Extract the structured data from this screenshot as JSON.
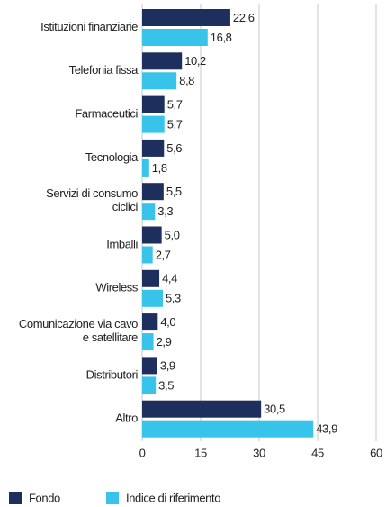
{
  "chart_data": {
    "type": "bar",
    "orientation": "horizontal",
    "categories": [
      "Istituzioni finanziarie",
      "Telefonia fissa",
      "Farmaceutici",
      "Tecnologia",
      "Servizi di consumo\nciclici",
      "Imballi",
      "Wireless",
      "Comunicazione via cavo\ne satellitare",
      "Distributori",
      "Altro"
    ],
    "series": [
      {
        "name": "Fondo",
        "color": "#1d2f5c",
        "values": [
          22.6,
          10.2,
          5.7,
          5.6,
          5.5,
          5.0,
          4.4,
          4.0,
          3.9,
          30.5
        ],
        "value_labels": [
          "22,6",
          "10,2",
          "5,7",
          "5,6",
          "5,5",
          "5,0",
          "4,4",
          "4,0",
          "3,9",
          "30,5"
        ]
      },
      {
        "name": "Indice di riferimento",
        "color": "#37c3ea",
        "values": [
          16.8,
          8.8,
          5.7,
          1.8,
          3.3,
          2.7,
          5.3,
          2.9,
          3.5,
          43.9
        ],
        "value_labels": [
          "16,8",
          "8,8",
          "5,7",
          "1,8",
          "3,3",
          "2,7",
          "5,3",
          "2,9",
          "3,5",
          "43,9"
        ]
      }
    ],
    "xlim": [
      0,
      60
    ],
    "xticks": [
      0,
      15,
      30,
      45,
      60
    ],
    "grid": true,
    "legend": "bottom"
  }
}
